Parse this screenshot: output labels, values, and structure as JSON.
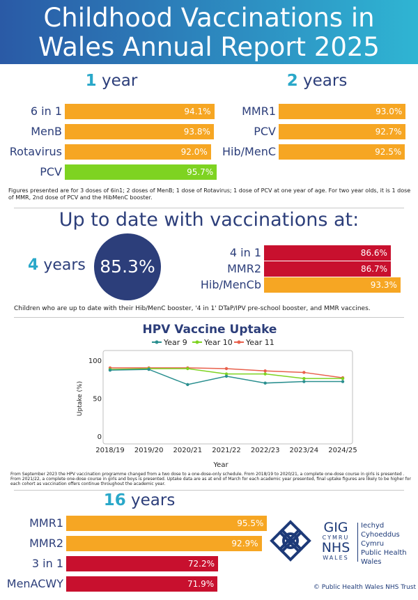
{
  "header": {
    "title_line1": "Childhood Vaccinations in",
    "title_line2": "Wales Annual Report 2025"
  },
  "colors": {
    "orange": "#f6a623",
    "green": "#7ed321",
    "red": "#c8102e",
    "navy": "#2c3e7a",
    "teal": "#2aa8c9",
    "y9": "#2a8f8f",
    "y10": "#7ed321",
    "y11": "#e8604c"
  },
  "one_year": {
    "num": "1",
    "label": "year",
    "bars": [
      {
        "name": "6 in 1",
        "value_label": "94.1%",
        "value": 94.1,
        "color": "orange"
      },
      {
        "name": "MenB",
        "value_label": "93.8%",
        "value": 93.8,
        "color": "orange"
      },
      {
        "name": "Rotavirus",
        "value_label": "92.0%",
        "value": 92.0,
        "color": "orange"
      },
      {
        "name": "PCV",
        "value_label": "95.7%",
        "value": 95.7,
        "color": "green"
      }
    ]
  },
  "two_years": {
    "num": "2",
    "label": "years",
    "bars": [
      {
        "name": "MMR1",
        "value_label": "93.0%",
        "value": 93.0,
        "color": "orange"
      },
      {
        "name": "PCV",
        "value_label": "92.7%",
        "value": 92.7,
        "color": "orange"
      },
      {
        "name": "Hib/MenC",
        "value_label": "92.5%",
        "value": 92.5,
        "color": "orange"
      }
    ]
  },
  "note1": "Figures presented are for 3 doses of 6in1; 2 doses of MenB; 1 dose of Rotavirus; 1 dose of PCV at one year of age. For two year olds, it is 1 dose of MMR, 2nd dose of PCV and the HibMenC booster.",
  "up_to_date": {
    "title": "Up to date with vaccinations at:",
    "age_num": "4",
    "age_label": "years",
    "overall": "85.3%",
    "bars": [
      {
        "name": "4 in 1",
        "value_label": "86.6%",
        "value": 86.6,
        "color": "red"
      },
      {
        "name": "MMR2",
        "value_label": "86.7%",
        "value": 86.7,
        "color": "red"
      },
      {
        "name": "Hib/MenCb",
        "value_label": "93.3%",
        "value": 93.3,
        "color": "orange"
      }
    ],
    "note": "Children who are up to date with their Hib/MenC booster, '4 in 1' DTaP/IPV pre-school booster, and MMR vaccines."
  },
  "chart_data": {
    "type": "line",
    "title": "HPV Vaccine Uptake",
    "xlabel": "Year",
    "ylabel": "Uptake (%)",
    "categories": [
      "2018/19",
      "2019/20",
      "2020/21",
      "2021/22",
      "2022/23",
      "2023/24",
      "2024/25"
    ],
    "ylim": [
      0,
      100
    ],
    "yticks": [
      "0",
      "50",
      "100"
    ],
    "legend_position": "top",
    "series": [
      {
        "name": "Year 9",
        "color": "#2a8f8f",
        "values": [
          87,
          88,
          68,
          79,
          70,
          72,
          72
        ]
      },
      {
        "name": "Year 10",
        "color": "#7ed321",
        "values": [
          88,
          89,
          89,
          82,
          82,
          76,
          76
        ]
      },
      {
        "name": "Year 11",
        "color": "#e8604c",
        "values": [
          90,
          90,
          90,
          89,
          86,
          84,
          77
        ]
      }
    ]
  },
  "note2": "From September 2023 the HPV vaccination programme changed from a two dose to a one-dose-only schedule. From 2018/19 to 2020/21, a complete one-dose course in girls is presented . From 2021/22, a complete one-dose course in girls and boys is presented. Uptake data are as at end of March for each academic year presented, final uptake figures are likely to be higher for each cohort as vaccination offers continue throughout the academic year.",
  "sixteen": {
    "num": "16",
    "label": "years",
    "bars": [
      {
        "name": "MMR1",
        "value_label": "95.5%",
        "value": 95.5,
        "color": "orange"
      },
      {
        "name": "MMR2",
        "value_label": "92.9%",
        "value": 92.9,
        "color": "orange"
      },
      {
        "name": "3 in 1",
        "value_label": "72.2%",
        "value": 72.2,
        "color": "red"
      },
      {
        "name": "MenACWY",
        "value_label": "71.9%",
        "value": 71.9,
        "color": "red"
      }
    ]
  },
  "logo": {
    "gig": "GIG",
    "cymru": "CYMRU",
    "nhs": "NHS",
    "wales": "WALES",
    "line1": "Iechyd Cyhoeddus",
    "line2": "Cymru",
    "line3": "Public Health",
    "line4": "Wales"
  },
  "copyright": "© Public Health Wales NHS Trust"
}
